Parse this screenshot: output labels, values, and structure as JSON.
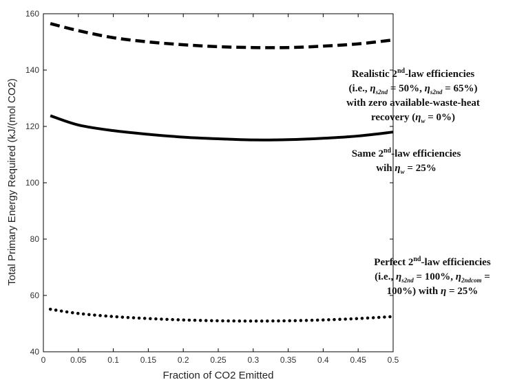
{
  "chart_data": {
    "type": "line",
    "xlabel": "Fraction of CO2 Emitted",
    "ylabel": "Total Primary Energy Required (kJ/(mol CO2)",
    "xlim": [
      0,
      0.5
    ],
    "ylim": [
      40,
      160
    ],
    "x_ticks": [
      "0",
      "0.05",
      "0.1",
      "0.15",
      "0.2",
      "0.25",
      "0.3",
      "0.35",
      "0.4",
      "0.45",
      "0.5"
    ],
    "y_ticks": [
      "40",
      "60",
      "80",
      "100",
      "120",
      "140",
      "160"
    ],
    "series": [
      {
        "style": "dashed",
        "x": [
          0.01,
          0.05,
          0.1,
          0.15,
          0.2,
          0.25,
          0.3,
          0.35,
          0.4,
          0.45,
          0.5
        ],
        "values": [
          156.5,
          154.0,
          151.5,
          150.0,
          149.0,
          148.3,
          148.0,
          148.0,
          148.5,
          149.3,
          150.7
        ]
      },
      {
        "style": "solid",
        "x": [
          0.01,
          0.05,
          0.1,
          0.15,
          0.2,
          0.25,
          0.3,
          0.35,
          0.4,
          0.45,
          0.5
        ],
        "values": [
          123.8,
          120.5,
          118.5,
          117.2,
          116.2,
          115.6,
          115.2,
          115.3,
          115.8,
          116.6,
          118.0
        ]
      },
      {
        "style": "dotted",
        "x": [
          0.01,
          0.05,
          0.1,
          0.15,
          0.2,
          0.25,
          0.3,
          0.35,
          0.4,
          0.45,
          0.5
        ],
        "values": [
          55.1,
          53.6,
          52.5,
          51.8,
          51.3,
          51.0,
          50.9,
          51.0,
          51.3,
          51.8,
          52.5
        ]
      }
    ],
    "annotations": [
      {
        "lines": [
          "Realistic 2nd-law efficiencies",
          "(i.e., ηs2nd = 50%, ηs2nd = 65%)",
          "with zero available-waste-heat",
          "recovery (ηw = 0%)"
        ]
      },
      {
        "lines": [
          "Same 2nd-law efficiencies",
          "wih ηw = 25%"
        ]
      },
      {
        "lines": [
          "Perfect 2nd-law efficiencies",
          "(i.e., ηs2nd = 100%, η2ndcom =",
          "100%) with ηw = 25%"
        ]
      }
    ]
  },
  "annotation_parts": {
    "a1": {
      "l1_pre": "Realistic 2",
      "l1_sup": "nd",
      "l1_post": "-law efficiencies",
      "l2_a": "(i.e., ",
      "eta": "η",
      "sub_s2nd": "s2nd",
      "l2_b": " = 50%, ",
      "l2_c": " = 65%)",
      "l3": "with zero available-waste-heat",
      "l4_a": "recovery (",
      "sub_w": "w",
      "l4_b": " = 0%)"
    },
    "a2": {
      "l1_pre": "Same 2",
      "l1_sup": "nd",
      "l1_post": "-law efficiencies",
      "l2_a": "wih ",
      "eta": "η",
      "sub_w": "w",
      "l2_b": " = 25%"
    },
    "a3": {
      "l1_pre": "Perfect 2",
      "l1_sup": "nd",
      "l1_post": "-law efficiencies",
      "l2_a": "(i.e., ",
      "eta": "η",
      "sub_s2nd": "s2nd",
      "l2_b": " = 100%, ",
      "sub_2ndcom": "2ndcom",
      "l2_c": " =",
      "l3_a": "100%) with ",
      "l3_b": " = 25%"
    }
  }
}
